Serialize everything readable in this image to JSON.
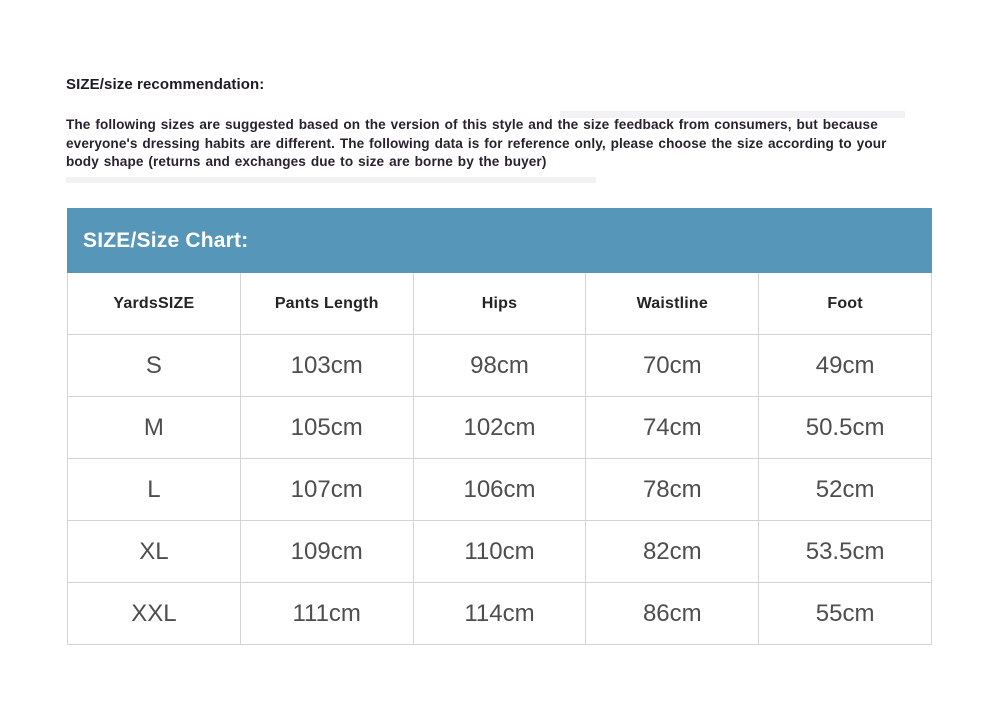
{
  "recommendation": {
    "heading": "SIZE/size recommendation:",
    "body": "The following sizes are suggested based on the version of this style and the size feedback from consumers, but because everyone's dressing habits are different. The following data is for reference only, please choose the size according to your body shape (returns and exchanges due to size are borne by the buyer)"
  },
  "size_chart": {
    "title": "SIZE/Size Chart:",
    "columns": [
      "YardsSIZE",
      "Pants Length",
      "Hips",
      "Waistline",
      "Foot"
    ],
    "rows": [
      [
        "S",
        "103cm",
        "98cm",
        "70cm",
        "49cm"
      ],
      [
        "M",
        "105cm",
        "102cm",
        "74cm",
        "50.5cm"
      ],
      [
        "L",
        "107cm",
        "106cm",
        "78cm",
        "52cm"
      ],
      [
        "XL",
        "109cm",
        "110cm",
        "82cm",
        "53.5cm"
      ],
      [
        "XXL",
        "111cm",
        "114cm",
        "86cm",
        "55cm"
      ]
    ]
  },
  "colors": {
    "title_bar_bg": "#5596b9",
    "title_bar_text": "#ffffff",
    "table_border": "#d4d4d4",
    "heading_text": "#1e1922",
    "body_text": "#29222e",
    "header_cell_text": "#242424",
    "data_cell_text": "#4e4e4e"
  }
}
